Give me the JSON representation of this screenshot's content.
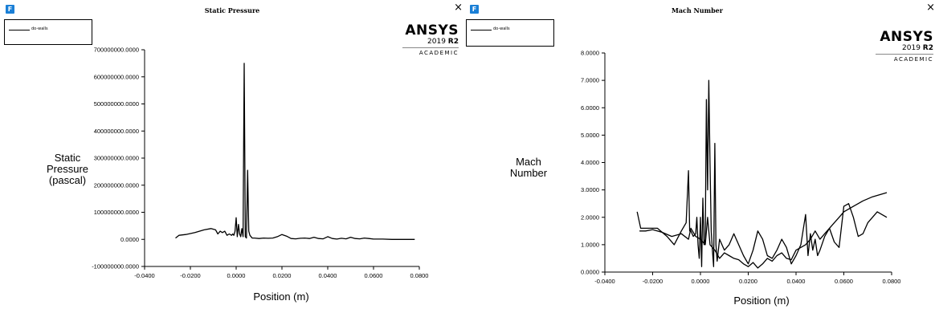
{
  "windows": [
    {
      "app_icon": "fluent-app-icon",
      "title": "Static Pressure",
      "close_icon": "close-icon",
      "close_glyph": "×",
      "logo": {
        "brand": "ANSYS",
        "version_year": "2019",
        "version_release": "R2",
        "edition": "ACADEMIC"
      }
    },
    {
      "app_icon": "fluent-app-icon",
      "title": "Mach Number",
      "close_icon": "close-icon",
      "close_glyph": "×",
      "logo": {
        "brand": "ANSYS",
        "version_year": "2019",
        "version_release": "R2",
        "edition": "ACADEMIC"
      }
    }
  ],
  "chart_data": [
    {
      "type": "line",
      "title": "Static Pressure",
      "xlabel": "Position (m)",
      "ylabel": [
        "Static",
        "Pressure",
        "(pascal)"
      ],
      "xlim": [
        -0.04,
        0.08
      ],
      "ylim": [
        -100000000,
        700000000
      ],
      "xticks": [
        "-0.0400",
        "-0.0200",
        "0.0000",
        "0.0200",
        "0.0400",
        "0.0600",
        "0.0800"
      ],
      "yticks": [
        "700000000.0000",
        "600000000.0000",
        "500000000.0000",
        "400000000.0000",
        "300000000.0000",
        "200000000.0000",
        "100000000.0000",
        "0.0000",
        "-100000000.0000"
      ],
      "grid": false,
      "legend_position": "top-left",
      "series": [
        {
          "name": "do-walls",
          "x": [
            -0.0265,
            -0.025,
            -0.022,
            -0.018,
            -0.014,
            -0.011,
            -0.009,
            -0.008,
            -0.007,
            -0.006,
            -0.005,
            -0.004,
            -0.003,
            -0.002,
            -0.0015,
            -0.001,
            -0.0005,
            0.0,
            0.0005,
            0.001,
            0.0015,
            0.002,
            0.0025,
            0.003,
            0.0035,
            0.004,
            0.0045,
            0.005,
            0.0055,
            0.006,
            0.007,
            0.008,
            0.01,
            0.012,
            0.014,
            0.016,
            0.018,
            0.02,
            0.022,
            0.024,
            0.026,
            0.028,
            0.03,
            0.032,
            0.034,
            0.036,
            0.038,
            0.04,
            0.042,
            0.044,
            0.046,
            0.048,
            0.05,
            0.052,
            0.054,
            0.056,
            0.058,
            0.06,
            0.064,
            0.068,
            0.072,
            0.076,
            0.078
          ],
          "y": [
            5000000,
            15000000,
            18000000,
            25000000,
            35000000,
            40000000,
            35000000,
            20000000,
            30000000,
            25000000,
            30000000,
            15000000,
            20000000,
            15000000,
            20000000,
            15000000,
            30000000,
            80000000,
            10000000,
            55000000,
            20000000,
            10000000,
            40000000,
            10000000,
            650000000,
            10000000,
            5000000,
            255000000,
            30000000,
            15000000,
            5000000,
            5000000,
            3000000,
            5000000,
            4000000,
            5000000,
            10000000,
            18000000,
            12000000,
            3000000,
            2000000,
            4000000,
            5000000,
            3000000,
            8000000,
            3000000,
            2000000,
            10000000,
            3000000,
            1000000,
            4000000,
            2000000,
            8000000,
            3000000,
            2000000,
            5000000,
            3000000,
            1000000,
            1000000,
            0,
            0,
            0,
            0
          ]
        }
      ]
    },
    {
      "type": "line",
      "title": "Mach Number",
      "xlabel": "Position (m)",
      "ylabel": [
        "Mach",
        "Number"
      ],
      "xlim": [
        -0.04,
        0.08
      ],
      "ylim": [
        0,
        8
      ],
      "xticks": [
        "-0.0400",
        "-0.0200",
        "0.0000",
        "0.0200",
        "0.0400",
        "0.0600",
        "0.0800"
      ],
      "yticks": [
        "8.0000",
        "7.0000",
        "6.0000",
        "5.0000",
        "4.0000",
        "3.0000",
        "2.0000",
        "1.0000",
        "0.0000"
      ],
      "grid": false,
      "legend_position": "top-left",
      "series": [
        {
          "name": "do-walls",
          "x": [
            -0.0265,
            -0.025,
            -0.022,
            -0.018,
            -0.014,
            -0.011,
            -0.008,
            -0.006,
            -0.005,
            -0.0045,
            -0.004,
            -0.003,
            -0.002,
            -0.0015,
            -0.001,
            -0.0005,
            0.0,
            0.0005,
            0.001,
            0.0015,
            0.002,
            0.0025,
            0.003,
            0.0035,
            0.004,
            0.0045,
            0.005,
            0.0055,
            0.006,
            0.0065,
            0.007,
            0.008,
            0.01,
            0.012,
            0.014,
            0.016,
            0.018,
            0.02,
            0.022,
            0.024,
            0.026,
            0.028,
            0.03,
            0.032,
            0.034,
            0.036,
            0.038,
            0.04,
            0.042,
            0.044,
            0.045,
            0.046,
            0.047,
            0.048,
            0.049,
            0.05,
            0.052,
            0.054,
            0.056,
            0.058,
            0.06,
            0.062,
            0.064,
            0.066,
            0.068,
            0.07,
            0.074,
            0.078
          ],
          "y": [
            2.2,
            1.6,
            1.6,
            1.6,
            1.3,
            1.0,
            1.5,
            1.8,
            3.7,
            1.5,
            1.5,
            1.3,
            1.4,
            2.0,
            1.0,
            0.5,
            2.0,
            0.2,
            2.7,
            1.0,
            1.2,
            6.3,
            3.0,
            7.0,
            4.0,
            1.5,
            0.8,
            0.2,
            4.7,
            1.0,
            0.4,
            1.2,
            0.8,
            1.0,
            1.4,
            1.0,
            0.6,
            0.3,
            0.8,
            1.5,
            1.2,
            0.6,
            0.5,
            0.8,
            1.2,
            0.9,
            0.3,
            0.6,
            1.0,
            2.1,
            0.6,
            1.4,
            0.8,
            1.2,
            0.6,
            0.8,
            1.3,
            1.6,
            1.1,
            0.9,
            2.4,
            2.5,
            2.0,
            1.3,
            1.4,
            1.8,
            2.2,
            2.0
          ]
        },
        {
          "name": "do-walls",
          "x": [
            -0.0255,
            -0.023,
            -0.02,
            -0.016,
            -0.012,
            -0.008,
            -0.005,
            -0.004,
            -0.002,
            0.0,
            0.002,
            0.003,
            0.004,
            0.006,
            0.008,
            0.01,
            0.012,
            0.014,
            0.016,
            0.018,
            0.02,
            0.022,
            0.024,
            0.026,
            0.028,
            0.03,
            0.032,
            0.034,
            0.036,
            0.038,
            0.04,
            0.042,
            0.044,
            0.046,
            0.048,
            0.05,
            0.052,
            0.054,
            0.056,
            0.058,
            0.06,
            0.064,
            0.068,
            0.072,
            0.076,
            0.078
          ],
          "y": [
            1.5,
            1.5,
            1.55,
            1.45,
            1.3,
            1.4,
            1.2,
            1.6,
            1.3,
            1.2,
            1.0,
            2.0,
            1.0,
            0.8,
            0.5,
            0.7,
            0.6,
            0.5,
            0.45,
            0.3,
            0.2,
            0.35,
            0.15,
            0.3,
            0.5,
            0.4,
            0.6,
            0.7,
            0.5,
            0.45,
            0.8,
            0.9,
            1.0,
            1.2,
            1.5,
            1.2,
            1.4,
            1.6,
            1.8,
            2.0,
            2.2,
            2.4,
            2.6,
            2.75,
            2.85,
            2.9
          ]
        }
      ]
    }
  ]
}
